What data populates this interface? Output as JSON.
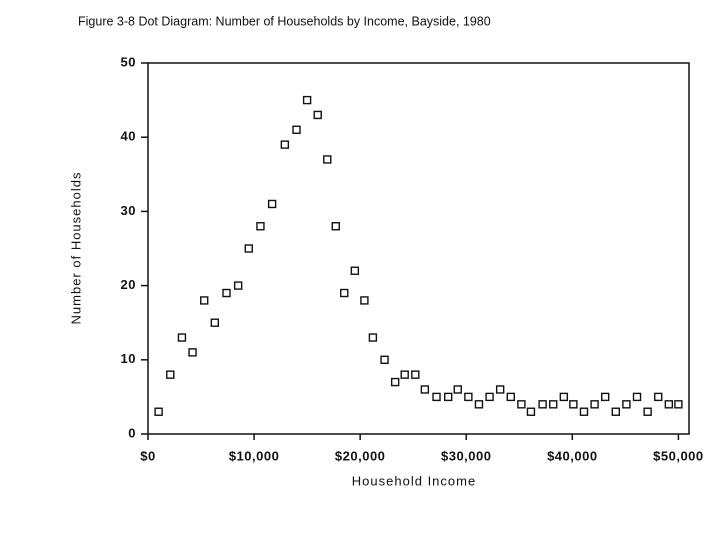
{
  "chart_data": {
    "type": "scatter",
    "title": "Figure 3-8 Dot Diagram: Number of Households by Income, Bayside, 1980",
    "x_label": "Household Income",
    "y_label": "Number of Households",
    "x": [
      1000,
      2100,
      3200,
      4200,
      5300,
      6300,
      7400,
      8500,
      9500,
      10600,
      11700,
      12900,
      14000,
      15000,
      16000,
      16900,
      17700,
      18500,
      19500,
      20400,
      21200,
      22300,
      23300,
      24200,
      25200,
      26100,
      27200,
      28300,
      29200,
      30200,
      31200,
      32200,
      33200,
      34200,
      35200,
      36100,
      37200,
      38200,
      39200,
      40100,
      41100,
      42100,
      43100,
      44100,
      45100,
      46100,
      47100,
      48100,
      49100,
      50000
    ],
    "values": [
      3,
      8,
      13,
      11,
      18,
      15,
      19,
      20,
      25,
      28,
      31,
      39,
      41,
      45,
      43,
      37,
      28,
      19,
      22,
      18,
      13,
      10,
      7,
      8,
      8,
      6,
      5,
      5,
      6,
      5,
      4,
      5,
      6,
      5,
      4,
      3,
      4,
      4,
      5,
      4,
      3,
      4,
      5,
      3,
      4,
      5,
      3,
      5,
      4,
      4
    ],
    "color": "#111111",
    "xlim": [
      0,
      51000
    ],
    "ylim": [
      0,
      50
    ],
    "xticks": [
      {
        "value": 0,
        "label": "$0"
      },
      {
        "value": 10000,
        "label": "$10,000"
      },
      {
        "value": 20000,
        "label": "$20,000"
      },
      {
        "value": 30000,
        "label": "$30,000"
      },
      {
        "value": 40000,
        "label": "$40,000"
      },
      {
        "value": 50000,
        "label": "$50,000"
      }
    ],
    "yticks": [
      0,
      10,
      20,
      30,
      40,
      50
    ],
    "grid": false
  }
}
